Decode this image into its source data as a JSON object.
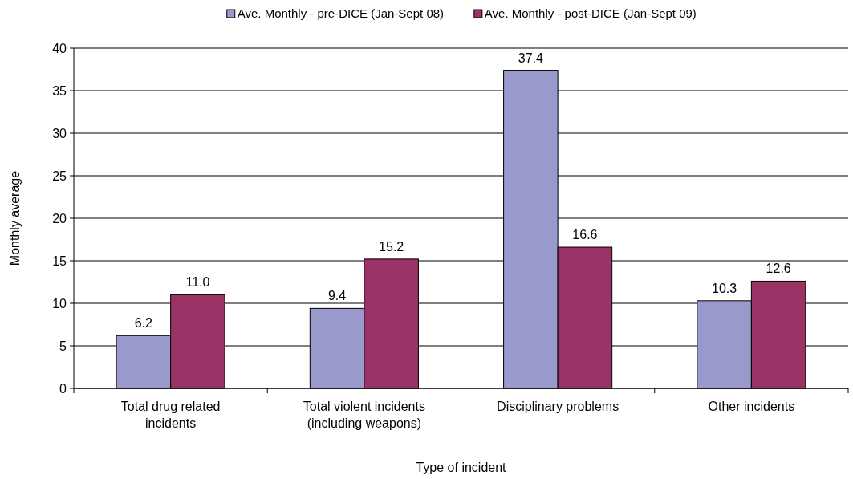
{
  "chart_data": {
    "type": "bar",
    "xlabel": "Type of incident",
    "ylabel": "Monthly average",
    "categories": [
      "Total drug related incidents",
      "Total violent incidents (including weapons)",
      "Disciplinary problems",
      "Other incidents"
    ],
    "series": [
      {
        "name": "Ave. Monthly - pre-DICE (Jan-Sept 08)",
        "color": "#9999cc",
        "values": [
          6.2,
          9.4,
          37.4,
          10.3
        ],
        "value_labels": [
          "6.2",
          "9.4",
          "37.4",
          "10.3"
        ]
      },
      {
        "name": "Ave. Monthly - post-DICE (Jan-Sept 09)",
        "color": "#993366",
        "values": [
          11.0,
          15.2,
          16.6,
          12.6
        ],
        "value_labels": [
          "11.0",
          "15.2",
          "16.6",
          "12.6"
        ]
      }
    ],
    "ylim": [
      0,
      40
    ],
    "yticks": [
      0,
      5,
      10,
      15,
      20,
      25,
      30,
      35,
      40
    ],
    "grid": "y",
    "legend": "top"
  }
}
